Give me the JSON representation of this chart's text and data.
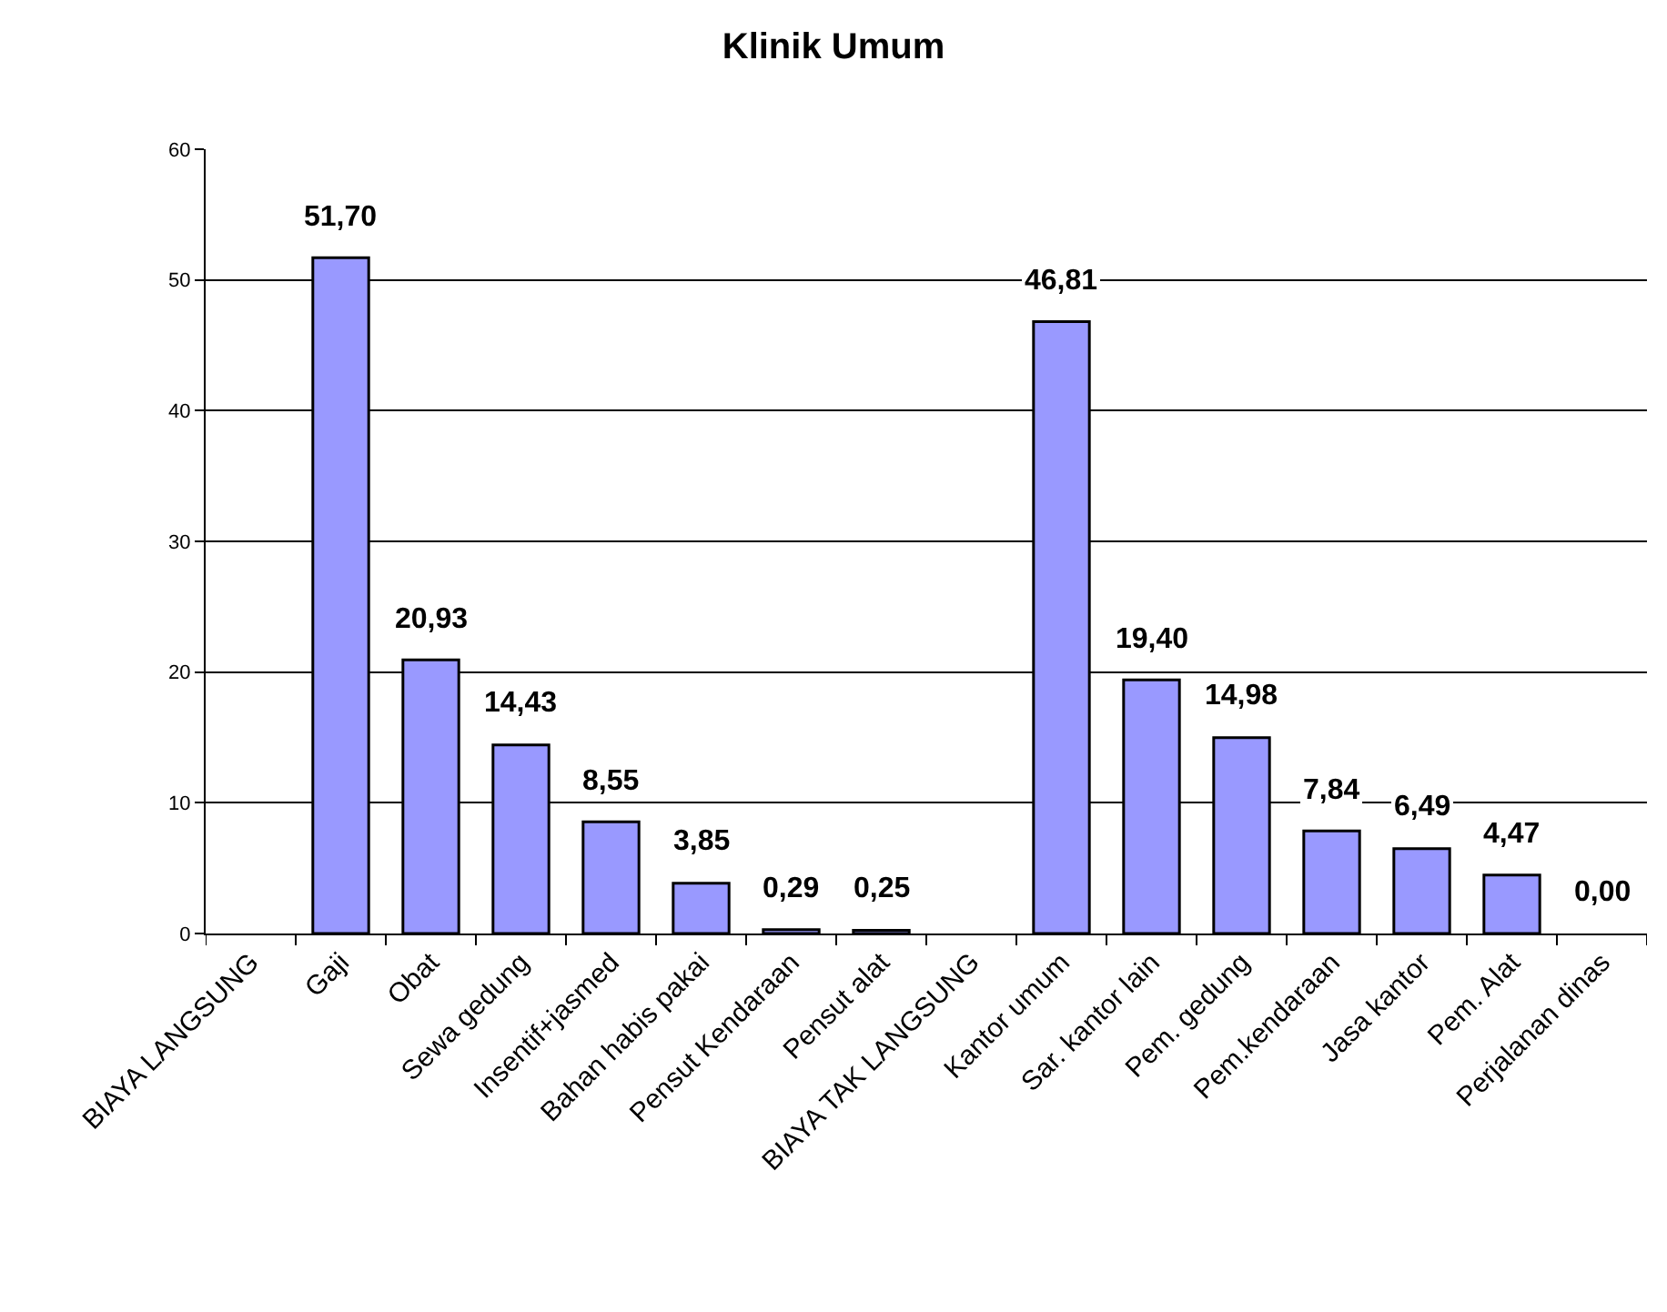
{
  "chart_data": {
    "type": "bar",
    "title": "Klinik Umum",
    "categories": [
      "BIAYA LANGSUNG",
      "Gaji",
      "Obat",
      "Sewa gedung",
      "Insentif+jasmed",
      "Bahan habis pakai",
      "Pensut Kendaraan",
      "Pensut alat",
      "BIAYA TAK LANGSUNG",
      "Kantor umum",
      "Sar. kantor lain",
      "Pem. gedung",
      "Pem.kendaraan",
      "Jasa kantor",
      "Pem. Alat",
      "Perjalanan dinas"
    ],
    "values": [
      null,
      51.7,
      20.93,
      14.43,
      8.55,
      3.85,
      0.29,
      0.25,
      null,
      46.81,
      19.4,
      14.98,
      7.84,
      6.49,
      4.47,
      0.0
    ],
    "value_labels": [
      null,
      "51,70",
      "20,93",
      "14,43",
      "8,55",
      "3,85",
      "0,29",
      "0,25",
      null,
      "46,81",
      "19,40",
      "14,98",
      "7,84",
      "6,49",
      "4,47",
      "0,00"
    ],
    "color": "#9999ff",
    "ylim": [
      0,
      60
    ],
    "yticks": [
      0,
      10,
      20,
      30,
      40,
      50,
      60
    ],
    "grid": "y",
    "legend": false
  }
}
